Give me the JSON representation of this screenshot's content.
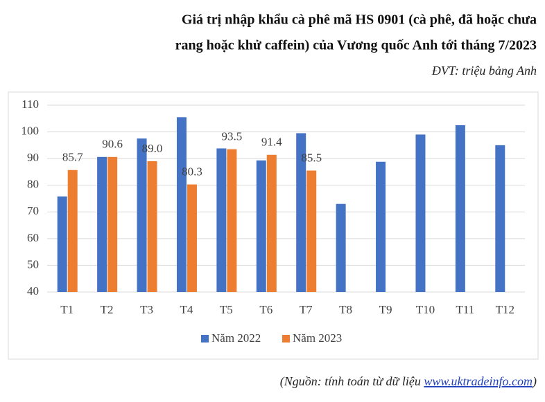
{
  "chart_data": {
    "type": "bar",
    "title": [
      "Giá trị nhập khẩu cà phê mã HS 0901 (cà phê, đã hoặc chưa",
      "rang hoặc khử caffein) của Vương quốc Anh tới tháng 7/2023"
    ],
    "unit": "ĐVT: triệu bảng Anh",
    "categories": [
      "T1",
      "T2",
      "T3",
      "T4",
      "T5",
      "T6",
      "T7",
      "T8",
      "T9",
      "T10",
      "T11",
      "T12"
    ],
    "series": [
      {
        "name": "Năm 2022",
        "color": "#4472c4",
        "values": [
          75.8,
          90.6,
          97.5,
          105.5,
          93.8,
          89.3,
          99.5,
          73,
          88.8,
          99,
          102.5,
          95
        ]
      },
      {
        "name": "Năm 2023",
        "color": "#ed7d31",
        "values": [
          85.7,
          90.6,
          89,
          80.3,
          93.5,
          91.4,
          85.5,
          null,
          null,
          null,
          null,
          null
        ],
        "value_labels": [
          "85.7",
          "90.6",
          "89.0",
          "80.3",
          "93.5",
          "91.4",
          "85.5",
          null,
          null,
          null,
          null,
          null
        ]
      }
    ],
    "ylim": [
      40,
      110
    ],
    "yticks": [
      40,
      50,
      60,
      70,
      80,
      90,
      100,
      110
    ],
    "grid": true,
    "source": [
      "(Nguồn: tính toán từ dữ liệu",
      "www.uktradeinfo.com",
      ")"
    ]
  }
}
